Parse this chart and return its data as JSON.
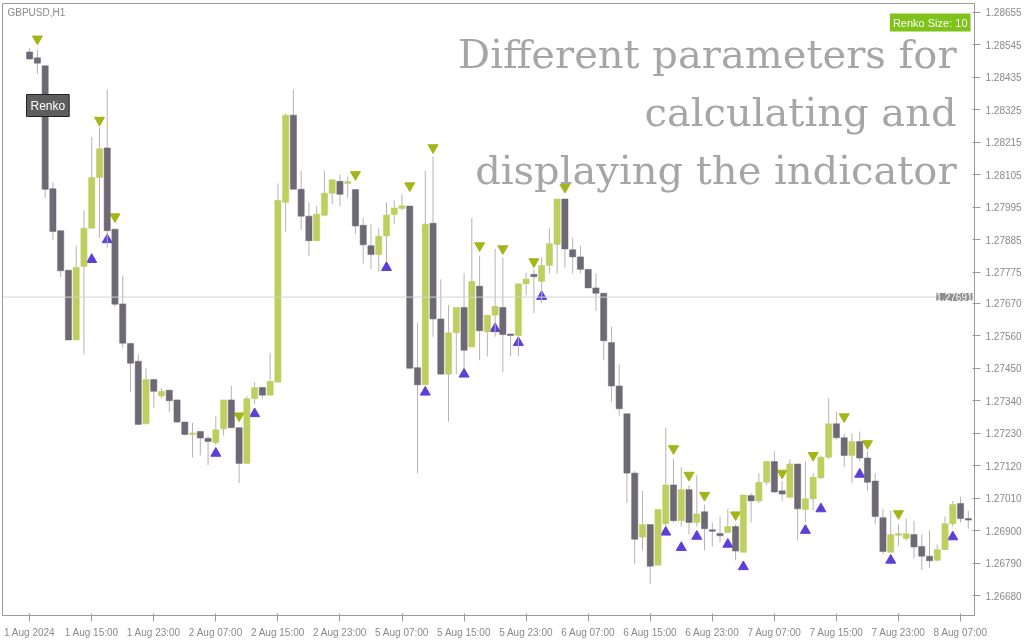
{
  "chart_data": {
    "type": "candlestick",
    "title": "GBPUSD,H1",
    "annotations": [
      "Different parameters for calculating and displaying the indicator",
      "Renko",
      "Renko Size: 10"
    ],
    "categories": [
      "1 Aug 2024",
      null,
      null,
      null,
      null,
      null,
      null,
      null,
      "1 Aug 15:00",
      null,
      null,
      null,
      null,
      null,
      null,
      null,
      "1 Aug 23:00",
      null,
      null,
      null,
      null,
      null,
      null,
      null,
      "2 Aug 07:00",
      null,
      null,
      null,
      null,
      null,
      null,
      null,
      "2 Aug 15:00",
      null,
      null,
      null,
      null,
      null,
      null,
      null,
      "2 Aug 23:00",
      null,
      null,
      null,
      null,
      null,
      null,
      null,
      "5 Aug 07:00",
      null,
      null,
      null,
      null,
      null,
      null,
      null,
      "5 Aug 15:00",
      null,
      null,
      null,
      null,
      null,
      null,
      null,
      "5 Aug 23:00",
      null,
      null,
      null,
      null,
      null,
      null,
      null,
      "6 Aug 07:00",
      null,
      null,
      null,
      null,
      null,
      null,
      null,
      "6 Aug 15:00",
      null,
      null,
      null,
      null,
      null,
      null,
      null,
      "6 Aug 23:00",
      null,
      null,
      null,
      null,
      null,
      null,
      null,
      "7 Aug 07:00",
      null,
      null,
      null,
      null,
      null,
      null,
      null,
      "7 Aug 15:00",
      null,
      null,
      null,
      null,
      null,
      null,
      null,
      "7 Aug 23:00",
      null,
      null,
      null,
      null,
      null,
      null,
      null,
      "8 Aug 07:00",
      null
    ],
    "ohlc": [
      [
        1.28521,
        1.28534,
        1.28494,
        1.28497
      ],
      [
        1.28501,
        1.28528,
        1.28447,
        1.28483
      ],
      [
        1.28474,
        1.28474,
        1.28026,
        1.28056
      ],
      [
        1.28058,
        1.28079,
        1.27885,
        1.27913
      ],
      [
        1.27916,
        1.27916,
        1.27758,
        1.2778
      ],
      [
        1.27782,
        1.27782,
        1.27546,
        1.27546
      ],
      [
        1.27546,
        1.27865,
        1.27546,
        1.27791
      ],
      [
        1.27795,
        1.27985,
        1.27497,
        1.27924
      ],
      [
        1.27924,
        1.28233,
        1.27924,
        1.28096
      ],
      [
        1.28096,
        1.28267,
        1.27892,
        1.28193
      ],
      [
        1.28196,
        1.28394,
        1.27858,
        1.27916
      ],
      [
        1.27921,
        1.27921,
        1.27657,
        1.27667
      ],
      [
        1.27668,
        1.27764,
        1.27517,
        1.27535
      ],
      [
        1.27534,
        1.27537,
        1.27369,
        1.27467
      ],
      [
        1.27474,
        1.27497,
        1.2726,
        1.2726
      ],
      [
        1.27262,
        1.2745,
        1.27262,
        1.27412
      ],
      [
        1.27412,
        1.27412,
        1.27316,
        1.27372
      ],
      [
        1.27356,
        1.27383,
        1.27349,
        1.27372
      ],
      [
        1.27376,
        1.27376,
        1.27302,
        1.2734
      ],
      [
        1.27343,
        1.27343,
        1.27265,
        1.27268
      ],
      [
        1.27268,
        1.27268,
        1.27222,
        1.27226
      ],
      [
        1.27226,
        1.27265,
        1.27148,
        1.27231
      ],
      [
        1.27236,
        1.27236,
        1.27155,
        1.27214
      ],
      [
        1.27213,
        1.27222,
        1.27122,
        1.27202
      ],
      [
        1.27198,
        1.27289,
        1.27191,
        1.27242
      ],
      [
        1.27245,
        1.27343,
        1.27222,
        1.27343
      ],
      [
        1.27343,
        1.2739,
        1.27249,
        1.27249
      ],
      [
        1.27249,
        1.27249,
        1.27061,
        1.27128
      ],
      [
        1.27128,
        1.27356,
        1.27128,
        1.27347
      ],
      [
        1.27347,
        1.27403,
        1.27329,
        1.27385
      ],
      [
        1.27385,
        1.27385,
        1.27349,
        1.27359
      ],
      [
        1.27359,
        1.27503,
        1.27359,
        1.27406
      ],
      [
        1.27403,
        1.28076,
        1.27403,
        1.28019
      ],
      [
        1.28012,
        1.28313,
        1.27912,
        1.28307
      ],
      [
        1.28307,
        1.28394,
        1.28056,
        1.28056
      ],
      [
        1.28056,
        1.28119,
        1.27918,
        1.27965
      ],
      [
        1.27965,
        1.28012,
        1.27831,
        1.27882
      ],
      [
        1.27882,
        1.27999,
        1.27882,
        1.27972
      ],
      [
        1.27968,
        1.28119,
        1.27965,
        1.28043
      ],
      [
        1.28043,
        1.28088,
        1.28005,
        1.28088
      ],
      [
        1.28083,
        1.28106,
        1.27999,
        1.28039
      ],
      [
        1.28076,
        1.28099,
        1.28026,
        1.28082
      ],
      [
        1.28055,
        1.28055,
        1.27905,
        1.27932
      ],
      [
        1.27934,
        1.27959,
        1.27805,
        1.27868
      ],
      [
        1.27865,
        1.27938,
        1.27785,
        1.27835
      ],
      [
        1.27835,
        1.27925,
        1.27778,
        1.27897
      ],
      [
        1.27898,
        1.28012,
        1.27811,
        1.27969
      ],
      [
        1.27971,
        1.28019,
        1.27938,
        1.27993
      ],
      [
        1.27991,
        1.28039,
        1.27985,
        1.28
      ],
      [
        1.27999,
        1.27999,
        1.2745,
        1.2745
      ],
      [
        1.27452,
        1.27604,
        1.27095,
        1.27394
      ],
      [
        1.27394,
        1.28119,
        1.27394,
        1.27938
      ],
      [
        1.27941,
        1.28166,
        1.27557,
        1.27617
      ],
      [
        1.27617,
        1.27751,
        1.2743,
        1.2743
      ],
      [
        1.2743,
        1.27664,
        1.27269,
        1.2757
      ],
      [
        1.2757,
        1.27656,
        1.2743,
        1.27656
      ],
      [
        1.27656,
        1.27771,
        1.2745,
        1.27511
      ],
      [
        1.27522,
        1.27959,
        1.27522,
        1.27744
      ],
      [
        1.27728,
        1.27831,
        1.27477,
        1.27577
      ],
      [
        1.27573,
        1.2763,
        1.2749,
        1.2763
      ],
      [
        1.2763,
        1.27854,
        1.27557,
        1.2766
      ],
      [
        1.27656,
        1.27825,
        1.27436,
        1.27564
      ],
      [
        1.27566,
        1.27566,
        1.2749,
        1.27561
      ],
      [
        1.27561,
        1.27736,
        1.2749,
        1.27736
      ],
      [
        1.27736,
        1.27774,
        1.27697,
        1.27752
      ],
      [
        1.27768,
        1.27785,
        1.27637,
        1.2776
      ],
      [
        1.27744,
        1.27825,
        1.27671,
        1.27798
      ],
      [
        1.27798,
        1.27925,
        1.27771,
        1.27872
      ],
      [
        1.27869,
        1.28023,
        1.27771,
        1.28023
      ],
      [
        1.28023,
        1.28023,
        1.27791,
        1.27854
      ],
      [
        1.27851,
        1.27892,
        1.27771,
        1.27827
      ],
      [
        1.27827,
        1.27865,
        1.27771,
        1.27785
      ],
      [
        1.27785,
        1.27785,
        1.27722,
        1.27722
      ],
      [
        1.27722,
        1.27771,
        1.27644,
        1.27704
      ],
      [
        1.27704,
        1.27704,
        1.27477,
        1.27543
      ],
      [
        1.27537,
        1.2759,
        1.27336,
        1.2739
      ],
      [
        1.2739,
        1.27463,
        1.27289,
        1.27313
      ],
      [
        1.27296,
        1.27296,
        1.26994,
        1.27095
      ],
      [
        1.27095,
        1.27102,
        1.26787,
        1.26871
      ],
      [
        1.26878,
        1.27035,
        1.26834,
        1.26921
      ],
      [
        1.26921,
        1.26921,
        1.2672,
        1.2678
      ],
      [
        1.26783,
        1.26972,
        1.26783,
        1.26972
      ],
      [
        1.26924,
        1.27249,
        1.26914,
        1.27055
      ],
      [
        1.27055,
        1.27142,
        1.26928,
        1.26934
      ],
      [
        1.26934,
        1.27115,
        1.26914,
        1.27039
      ],
      [
        1.27039,
        1.27055,
        1.26887,
        1.26928
      ],
      [
        1.26928,
        1.27088,
        1.26914,
        1.26957
      ],
      [
        1.26964,
        1.26988,
        1.26834,
        1.26907
      ],
      [
        1.26903,
        1.26928,
        1.26847,
        1.26898
      ],
      [
        1.26891,
        1.26948,
        1.26861,
        1.26883
      ],
      [
        1.26894,
        1.26974,
        1.26894,
        1.26914
      ],
      [
        1.26914,
        1.26921,
        1.268,
        1.26831
      ],
      [
        1.26827,
        1.27021,
        1.26827,
        1.27021
      ],
      [
        1.27019,
        1.27028,
        1.26928,
        1.27001
      ],
      [
        1.27001,
        1.27095,
        1.26994,
        1.27064
      ],
      [
        1.27064,
        1.27135,
        1.27055,
        1.27134
      ],
      [
        1.27134,
        1.27169,
        1.27028,
        1.27031
      ],
      [
        1.27035,
        1.27068,
        1.27001,
        1.27024
      ],
      [
        1.27013,
        1.27142,
        1.27011,
        1.27126
      ],
      [
        1.27126,
        1.27126,
        1.26867,
        1.26974
      ],
      [
        1.26972,
        1.27135,
        1.26928,
        1.27008
      ],
      [
        1.27008,
        1.27095,
        1.26968,
        1.27081
      ],
      [
        1.27079,
        1.27155,
        1.27075,
        1.27149
      ],
      [
        1.27149,
        1.27349,
        1.27142,
        1.27262
      ],
      [
        1.27262,
        1.27302,
        1.27209,
        1.27215
      ],
      [
        1.27215,
        1.27229,
        1.27115,
        1.27155
      ],
      [
        1.27155,
        1.27229,
        1.27061,
        1.27202
      ],
      [
        1.27202,
        1.27236,
        1.27135,
        1.27146
      ],
      [
        1.27146,
        1.27169,
        1.27035,
        1.27064
      ],
      [
        1.27068,
        1.27095,
        1.26921,
        1.26948
      ],
      [
        1.26944,
        1.26974,
        1.2682,
        1.2683
      ],
      [
        1.26827,
        1.26968,
        1.26827,
        1.26887
      ],
      [
        1.26885,
        1.26921,
        1.26847,
        1.2689
      ],
      [
        1.26874,
        1.26941,
        1.26867,
        1.2689
      ],
      [
        1.26887,
        1.26934,
        1.26807,
        1.26845
      ],
      [
        1.26847,
        1.26887,
        1.26767,
        1.26814
      ],
      [
        1.26814,
        1.26901,
        1.26774,
        1.26798
      ],
      [
        1.268,
        1.26854,
        1.26796,
        1.26836
      ],
      [
        1.26836,
        1.26948,
        1.26834,
        1.26924
      ],
      [
        1.26924,
        1.27001,
        1.26914,
        1.26989
      ],
      [
        1.26992,
        1.27015,
        1.26928,
        1.26941
      ],
      [
        1.26941,
        1.26968,
        1.26907,
        1.26936
      ]
    ],
    "colors": [
      "#6e6974",
      "#6e6974",
      "#6e6974",
      "#6e6974",
      "#6e6974",
      "#6e6974",
      "#bdcf5e",
      "#bdcf5e",
      "#bdcf5e",
      "#bdcf5e",
      "#6e6974",
      "#6e6974",
      "#6e6974",
      "#6e6974",
      "#6e6974",
      "#bdcf5e",
      "#6e6974",
      "#bdcf5e",
      "#6e6974",
      "#6e6974",
      "#6e6974",
      "#bdcf5e",
      "#6e6974",
      "#6e6974",
      "#bdcf5e",
      "#bdcf5e",
      "#6e6974",
      "#6e6974",
      "#bdcf5e",
      "#bdcf5e",
      "#6e6974",
      "#bdcf5e",
      "#bdcf5e",
      "#bdcf5e",
      "#6e6974",
      "#6e6974",
      "#6e6974",
      "#bdcf5e",
      "#bdcf5e",
      "#bdcf5e",
      "#6e6974",
      "#bdcf5e",
      "#6e6974",
      "#6e6974",
      "#6e6974",
      "#bdcf5e",
      "#bdcf5e",
      "#bdcf5e",
      "#bdcf5e",
      "#6e6974",
      "#6e6974",
      "#bdcf5e",
      "#6e6974",
      "#6e6974",
      "#bdcf5e",
      "#bdcf5e",
      "#6e6974",
      "#bdcf5e",
      "#6e6974",
      "#bdcf5e",
      "#bdcf5e",
      "#6e6974",
      "#6e6974",
      "#bdcf5e",
      "#bdcf5e",
      "#6e6974",
      "#bdcf5e",
      "#bdcf5e",
      "#bdcf5e",
      "#6e6974",
      "#6e6974",
      "#6e6974",
      "#6e6974",
      "#6e6974",
      "#6e6974",
      "#6e6974",
      "#6e6974",
      "#6e6974",
      "#6e6974",
      "#bdcf5e",
      "#6e6974",
      "#bdcf5e",
      "#bdcf5e",
      "#6e6974",
      "#bdcf5e",
      "#6e6974",
      "#bdcf5e",
      "#6e6974",
      "#6e6974",
      "#6e6974",
      "#bdcf5e",
      "#6e6974",
      "#bdcf5e",
      "#6e6974",
      "#bdcf5e",
      "#bdcf5e",
      "#6e6974",
      "#6e6974",
      "#bdcf5e",
      "#6e6974",
      "#bdcf5e",
      "#bdcf5e",
      "#bdcf5e",
      "#bdcf5e",
      "#6e6974",
      "#6e6974",
      "#bdcf5e",
      "#6e6974",
      "#6e6974",
      "#6e6974",
      "#6e6974",
      "#bdcf5e",
      "#bdcf5e",
      "#bdcf5e",
      "#6e6974",
      "#6e6974",
      "#6e6974",
      "#bdcf5e",
      "#bdcf5e",
      "#bdcf5e",
      "#6e6974",
      "#6e6974"
    ],
    "series": [
      {
        "type": "scatter",
        "color": "#a3b518",
        "values": [
          null,
          1.28565,
          null,
          null,
          null,
          null,
          null,
          null,
          null,
          1.2829,
          null,
          1.27963,
          null,
          null,
          null,
          null,
          null,
          null,
          null,
          null,
          null,
          null,
          null,
          null,
          null,
          null,
          null,
          1.27289,
          null,
          null,
          null,
          null,
          null,
          null,
          null,
          null,
          null,
          null,
          null,
          null,
          null,
          null,
          1.28106,
          null,
          null,
          null,
          null,
          null,
          null,
          1.28068,
          null,
          null,
          1.28197,
          null,
          null,
          null,
          null,
          null,
          1.27865,
          null,
          null,
          1.27855,
          null,
          null,
          null,
          1.27811,
          null,
          null,
          null,
          1.28063,
          null,
          null,
          null,
          null,
          null,
          null,
          null,
          null,
          null,
          null,
          null,
          null,
          null,
          1.27178,
          null,
          1.27088,
          null,
          1.2702,
          null,
          null,
          null,
          1.26954,
          null,
          null,
          null,
          null,
          null,
          1.27095,
          null,
          null,
          null,
          1.27155,
          null,
          null,
          null,
          1.27286,
          null,
          null,
          1.27195,
          null,
          null,
          null,
          1.26958,
          null,
          null,
          null,
          null,
          null,
          null,
          null,
          null,
          null
        ]
      },
      {
        "type": "scatter",
        "color": "#5c3fd9",
        "values": [
          null,
          null,
          null,
          null,
          null,
          null,
          null,
          null,
          1.27818,
          null,
          1.27885,
          null,
          null,
          null,
          null,
          null,
          null,
          null,
          null,
          null,
          null,
          null,
          null,
          null,
          1.27162,
          null,
          null,
          null,
          null,
          1.27296,
          null,
          null,
          null,
          null,
          null,
          null,
          null,
          null,
          null,
          null,
          null,
          null,
          null,
          null,
          null,
          null,
          1.27791,
          null,
          null,
          null,
          null,
          1.27369,
          null,
          null,
          null,
          null,
          1.2743,
          null,
          null,
          null,
          1.27584,
          null,
          null,
          1.27537,
          null,
          null,
          1.27693,
          null,
          null,
          null,
          null,
          null,
          null,
          null,
          null,
          null,
          null,
          null,
          null,
          null,
          null,
          null,
          1.26895,
          null,
          1.26843,
          null,
          1.26881,
          null,
          null,
          null,
          1.26854,
          null,
          1.26778,
          null,
          null,
          null,
          null,
          null,
          null,
          null,
          1.26901,
          null,
          1.26974,
          null,
          null,
          null,
          null,
          1.27091,
          null,
          null,
          null,
          1.268,
          null,
          null,
          null,
          null,
          null,
          null,
          null,
          1.26879,
          null,
          null
        ]
      }
    ],
    "marker": "triangle",
    "ylim": [
      1.26613,
      1.28685
    ],
    "yticks": [
      1.28655,
      1.28545,
      1.28435,
      1.28325,
      1.28215,
      1.28105,
      1.27995,
      1.27885,
      1.27775,
      {
        "value": 1.2767,
        "label": "1.27670"
      },
      {
        "value": 1.2756,
        "label": "1.27560"
      },
      {
        "value": 1.2745,
        "label": "1.27450"
      },
      {
        "value": 1.2734,
        "label": "1.27340"
      },
      {
        "value": 1.2723,
        "label": "1.27230"
      },
      {
        "value": 1.2712,
        "label": "1.27120"
      },
      {
        "value": 1.2701,
        "label": "1.27010"
      },
      {
        "value": 1.269,
        "label": "1.26900"
      },
      {
        "value": 1.2679,
        "label": "1.26790"
      },
      {
        "value": 1.2668,
        "label": "1.26680"
      }
    ],
    "ref_lines": [
      {
        "axis": "y",
        "value": 1.27691,
        "label": "1.27691",
        "color": "#d3d3d3"
      }
    ],
    "grid": false
  }
}
